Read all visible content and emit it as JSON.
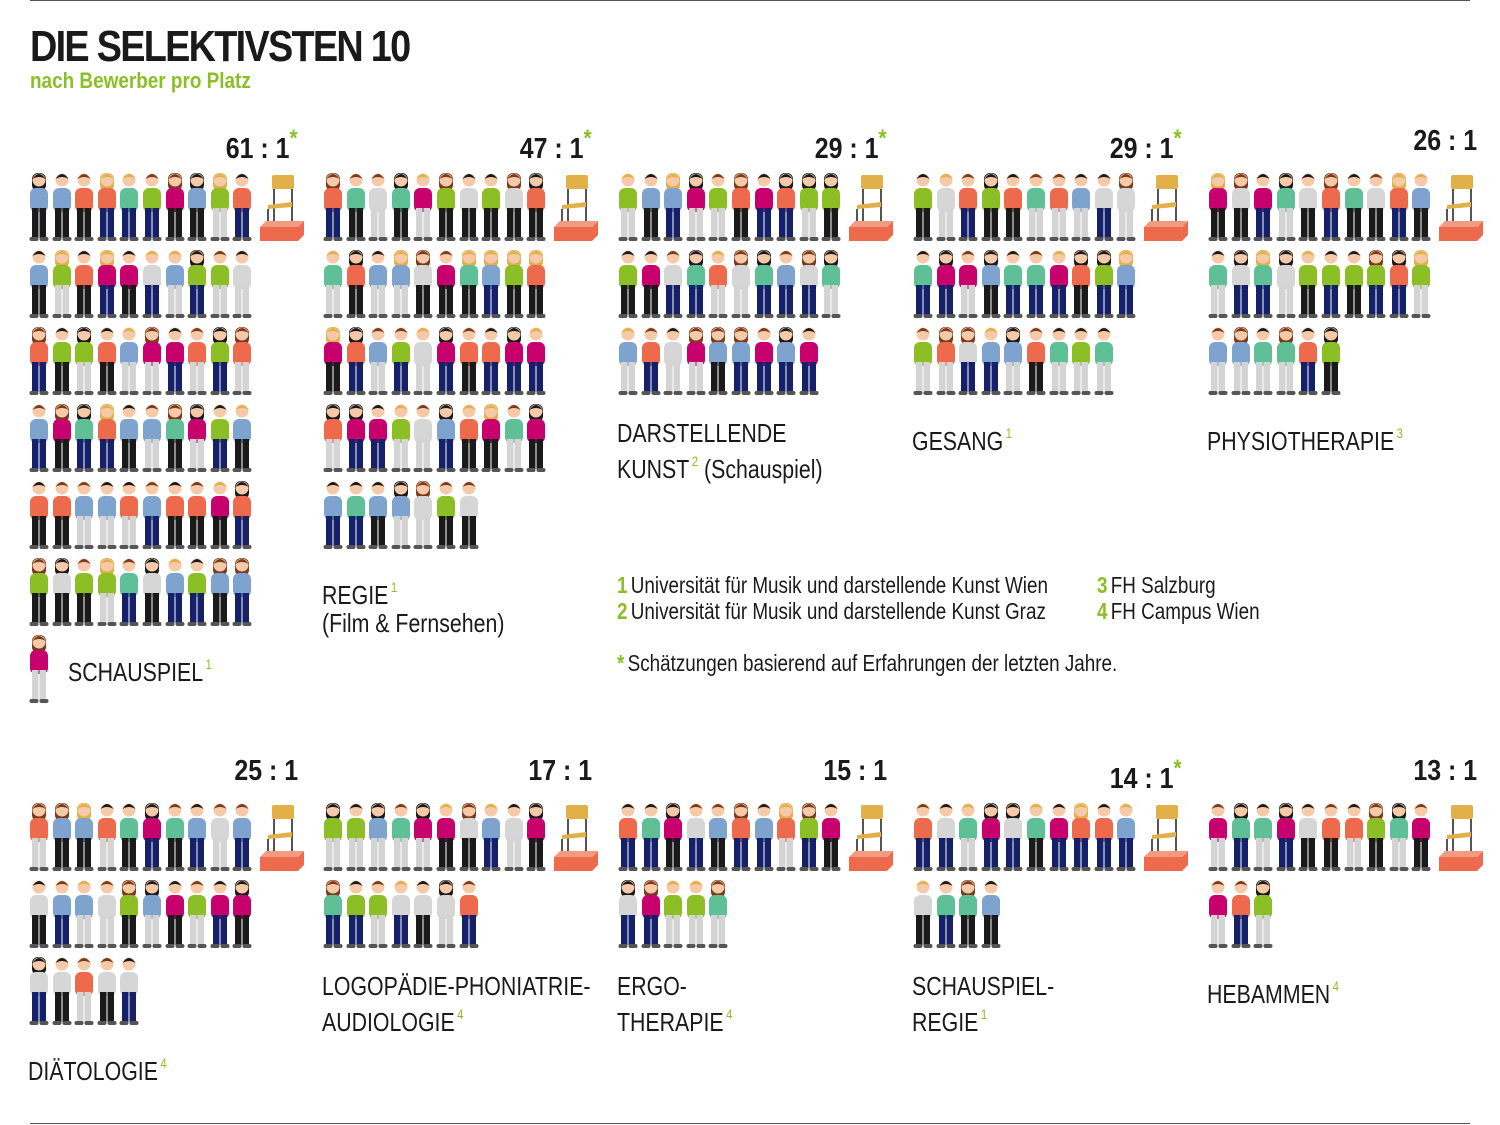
{
  "title": "DIE SELEKTIVSTEN 10",
  "subtitle": "nach Bewerber pro Platz",
  "colors": {
    "accent": "#8cbf26",
    "chair_seat": "#e2b048",
    "platform": "#ee6a4d"
  },
  "chart_data": {
    "type": "pictogram",
    "title": "DIE SELEKTIVSTEN 10",
    "subtitle": "nach Bewerber pro Platz",
    "unit": "Bewerber pro Platz",
    "items": [
      {
        "name": "SCHAUSPIEL",
        "name_lines": [
          "SCHAUSPIEL"
        ],
        "footnote": "1",
        "ratio": "61 : 1",
        "estimated": true,
        "applicants": 61
      },
      {
        "name": "REGIE (Film & Fernsehen)",
        "name_lines": [
          "REGIE",
          "(Film & Fernsehen)"
        ],
        "footnote": "1",
        "ratio": "47 : 1",
        "estimated": true,
        "applicants": 47
      },
      {
        "name": "DARSTELLENDE KUNST (Schauspiel)",
        "name_lines": [
          "DARSTELLENDE",
          "KUNST (Schauspiel)"
        ],
        "footnote": "2",
        "ratio": "29 : 1",
        "estimated": true,
        "applicants": 29
      },
      {
        "name": "GESANG",
        "name_lines": [
          "GESANG"
        ],
        "footnote": "1",
        "ratio": "29 : 1",
        "estimated": true,
        "applicants": 29
      },
      {
        "name": "PHYSIOTHERAPIE",
        "name_lines": [
          "PHYSIOTHERAPIE"
        ],
        "footnote": "3",
        "ratio": "26 : 1",
        "estimated": false,
        "applicants": 26
      },
      {
        "name": "DIÄTOLOGIE",
        "name_lines": [
          "DIÄTOLOGIE"
        ],
        "footnote": "4",
        "ratio": "25 : 1",
        "estimated": false,
        "applicants": 25
      },
      {
        "name": "LOGOPÄDIE-PHONIATRIE-AUDIOLOGIE",
        "name_lines": [
          "LOGOPÄDIE-PHONIATRIE-",
          "AUDIOLOGIE"
        ],
        "footnote": "4",
        "ratio": "17 : 1",
        "estimated": false,
        "applicants": 17
      },
      {
        "name": "ERGOTHERAPIE",
        "name_lines": [
          "ERGO-",
          "THERAPIE"
        ],
        "footnote": "4",
        "ratio": "15 : 1",
        "estimated": false,
        "applicants": 15
      },
      {
        "name": "SCHAUSPIEL-REGIE",
        "name_lines": [
          "SCHAUSPIEL-",
          "REGIE"
        ],
        "footnote": "1",
        "ratio": "14 : 1",
        "estimated": true,
        "applicants": 14
      },
      {
        "name": "HEBAMMEN",
        "name_lines": [
          "HEBAMMEN"
        ],
        "footnote": "4",
        "ratio": "13 : 1",
        "estimated": false,
        "applicants": 13
      }
    ]
  },
  "asterisk": "*",
  "footnotes": [
    {
      "num": "1",
      "text": "Universität für Musik und darstellende Kunst Wien"
    },
    {
      "num": "2",
      "text": "Universität für Musik und darstellende Kunst Graz"
    },
    {
      "num": "3",
      "text": "FH Salzburg"
    },
    {
      "num": "4",
      "text": "FH Campus Wien"
    }
  ],
  "estimate_note": {
    "mark": "*",
    "text": "Schätzungen basierend auf Erfahrungen der letzten Jahre."
  }
}
